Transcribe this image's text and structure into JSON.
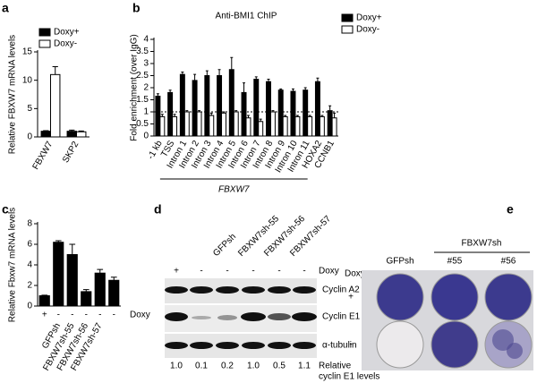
{
  "chart_data": [
    {
      "type": "bar",
      "panel": "a",
      "ylabel": "Relative FBXW7 mRNA levels",
      "categories": [
        "FBXW7",
        "SKP2"
      ],
      "series": [
        {
          "name": "Doxy+",
          "color": "#000000",
          "values": [
            1,
            1
          ],
          "errors": [
            0.1,
            0.2
          ]
        },
        {
          "name": "Doxy-",
          "color": "#ffffff",
          "values": [
            11,
            0.9
          ],
          "errors": [
            1.4,
            0.15
          ]
        }
      ],
      "ylim": [
        0,
        15
      ],
      "yticks": [
        0,
        5,
        10,
        15
      ],
      "legend": "top-left"
    },
    {
      "type": "bar",
      "panel": "b",
      "title": "Anti-BMI1 ChIP",
      "ylabel": "Fold enrichment (over IgG)",
      "xlabel": "FBXW7",
      "categories": [
        "-1 kb",
        "TSS",
        "Intron 1",
        "Intron 2",
        "Intron 3",
        "Intron 4",
        "Intron 5",
        "Intron 6",
        "Intron 7",
        "Intron 8",
        "Intron 9",
        "Intron 10",
        "Intron 11",
        "HOXA2",
        "CCNB1"
      ],
      "series": [
        {
          "name": "Doxy+",
          "color": "#000000",
          "values": [
            1.65,
            1.8,
            2.55,
            2.3,
            2.5,
            2.5,
            2.75,
            1.8,
            2.35,
            2.25,
            1.9,
            1.85,
            1.9,
            2.25,
            1.05
          ],
          "errors": [
            0.1,
            0.1,
            0.1,
            0.25,
            0.2,
            0.25,
            0.5,
            0.4,
            0.1,
            0.1,
            0.05,
            0.1,
            0.1,
            0.15,
            0.2
          ]
        },
        {
          "name": "Doxy-",
          "color": "#ffffff",
          "values": [
            0.8,
            0.8,
            1.0,
            1.0,
            0.85,
            0.95,
            1.0,
            0.75,
            0.6,
            1.0,
            0.8,
            0.8,
            0.8,
            0.8,
            0.75
          ],
          "errors": [
            0.1,
            0.1,
            0.05,
            0.05,
            0.1,
            0.05,
            0.05,
            0.1,
            0.1,
            0.05,
            0.05,
            0.05,
            0.05,
            0.05,
            0.2
          ]
        }
      ],
      "ylim": [
        0,
        4
      ],
      "yticks": [
        0,
        0.5,
        1,
        1.5,
        2,
        2.5,
        3,
        3.5,
        4
      ],
      "reference_line": 1,
      "legend": "right"
    },
    {
      "type": "bar",
      "panel": "c",
      "ylabel": "Relative Fbxw7 mRNA levels",
      "categories": [
        null,
        "GFPsh",
        "FBXW7sh-55",
        "FBXW7sh-56",
        "FBXW7sh-57",
        null
      ],
      "doxy_row": [
        "+",
        "-",
        "-",
        "-",
        "-",
        "-"
      ],
      "doxy_label": "Doxy",
      "values": [
        1.0,
        6.2,
        5.0,
        1.4,
        3.2,
        2.5
      ],
      "errors": [
        0.05,
        0.15,
        1.0,
        0.2,
        0.35,
        0.3
      ],
      "color": "#000000",
      "ylim": [
        0,
        8
      ],
      "yticks": [
        0,
        2,
        4,
        6,
        8
      ]
    }
  ],
  "blot": {
    "panel": "d",
    "lanes": [
      "GFPsh",
      "FBXW7sh-55",
      "FBXW7sh-56",
      "FBXW7sh-57"
    ],
    "doxy_row": [
      "+",
      "-",
      "-",
      "-",
      "-",
      "-"
    ],
    "doxy_label": "Doxy",
    "bands": [
      "Cyclin A2",
      "Cyclin E1",
      "α-tubulin"
    ],
    "relative_levels": [
      "1.0",
      "0.1",
      "0.2",
      "1.0",
      "0.5",
      "1.1"
    ],
    "levels_label": [
      "Relative",
      "cyclin E1 levels"
    ]
  },
  "plates": {
    "panel": "e",
    "group": "FBXW7sh",
    "columns": [
      "GFPsh",
      "#55",
      "#56"
    ],
    "doxy_label": "Doxy",
    "rows": [
      "+",
      "-"
    ]
  }
}
